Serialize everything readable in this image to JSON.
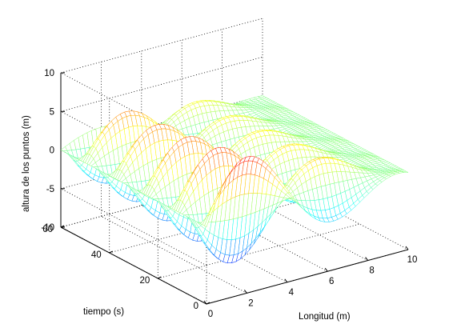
{
  "chart_data": {
    "type": "surface",
    "title": "",
    "xlabel": "Longitud (m)",
    "ylabel": "tiempo (s)",
    "zlabel": "altura de los puntos (m)",
    "xlim": [
      0,
      10
    ],
    "ylim": [
      0,
      60
    ],
    "zlim": [
      -10,
      10
    ],
    "x_ticks": [
      0,
      2,
      4,
      6,
      8,
      10
    ],
    "y_ticks": [
      0,
      20,
      40,
      60
    ],
    "z_ticks": [
      -10,
      -5,
      0,
      5,
      10
    ],
    "grid": true,
    "colormap": "jet",
    "colormap_range": [
      -10,
      10
    ],
    "description_of_data": {
      "max_height_m": 10,
      "min_height_m": -10
    }
  }
}
